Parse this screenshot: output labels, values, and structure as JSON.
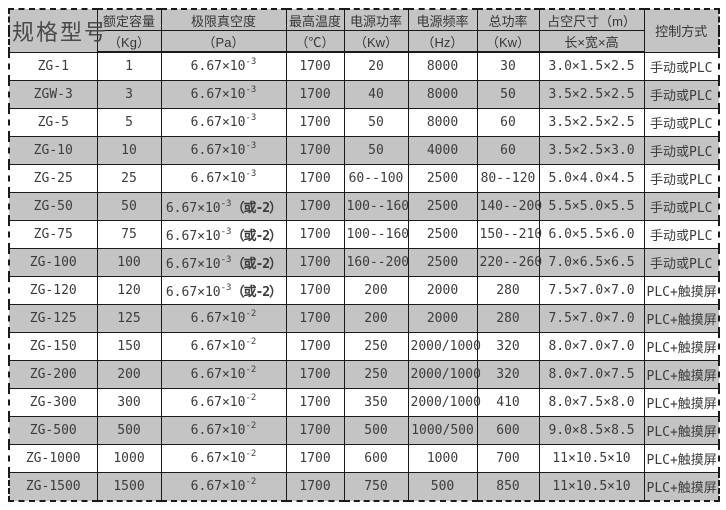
{
  "table": {
    "header": {
      "model": "规格型号",
      "control": "控制方式",
      "cols": [
        {
          "label": "额定容量",
          "unit": "（Kg）"
        },
        {
          "label": "极限真空度",
          "unit": "（Pa）"
        },
        {
          "label": "最高温度",
          "unit": "（℃）"
        },
        {
          "label": "电源功率",
          "unit": "（Kw）"
        },
        {
          "label": "电源频率",
          "unit": "（Hz）"
        },
        {
          "label": "总功率",
          "unit": "（Kw）"
        },
        {
          "label": "占空尺寸（m）",
          "unit": "长×宽×高"
        }
      ]
    },
    "rows": [
      {
        "model": "ZG-1",
        "capacity": "1",
        "vacuum": {
          "base": "6.67×10",
          "exp": "-3",
          "note": ""
        },
        "temp": "1700",
        "power": "20",
        "freq": "8000",
        "total_power": "30",
        "size": "3.0×1.5×2.5",
        "control": "手动或PLC"
      },
      {
        "model": "ZGW-3",
        "capacity": "3",
        "vacuum": {
          "base": "6.67×10",
          "exp": "-3",
          "note": ""
        },
        "temp": "1700",
        "power": "40",
        "freq": "8000",
        "total_power": "50",
        "size": "3.5×2.5×2.5",
        "control": "手动或PLC"
      },
      {
        "model": "ZG-5",
        "capacity": "5",
        "vacuum": {
          "base": "6.67×10",
          "exp": "-3",
          "note": ""
        },
        "temp": "1700",
        "power": "50",
        "freq": "8000",
        "total_power": "60",
        "size": "3.5×2.5×2.5",
        "control": "手动或PLC"
      },
      {
        "model": "ZG-10",
        "capacity": "10",
        "vacuum": {
          "base": "6.67×10",
          "exp": "-3",
          "note": ""
        },
        "temp": "1700",
        "power": "50",
        "freq": "4000",
        "total_power": "60",
        "size": "3.5×2.5×3.0",
        "control": "手动或PLC"
      },
      {
        "model": "ZG-25",
        "capacity": "25",
        "vacuum": {
          "base": "6.67×10",
          "exp": "-3",
          "note": ""
        },
        "temp": "1700",
        "power": "60--100",
        "freq": "2500",
        "total_power": "80--120",
        "size": "5.0×4.0×4.5",
        "control": "手动或PLC"
      },
      {
        "model": "ZG-50",
        "capacity": "50",
        "vacuum": {
          "base": "6.67×10",
          "exp": "-3",
          "note": "（或-2）"
        },
        "temp": "1700",
        "power": "100--160",
        "freq": "2500",
        "total_power": "140--200",
        "size": "5.5×5.0×5.5",
        "control": "手动或PLC"
      },
      {
        "model": "ZG-75",
        "capacity": "75",
        "vacuum": {
          "base": "6.67×10",
          "exp": "-3",
          "note": "（或-2）"
        },
        "temp": "1700",
        "power": "100--160",
        "freq": "2500",
        "total_power": "150--210",
        "size": "6.0×5.5×6.0",
        "control": "手动或PLC"
      },
      {
        "model": "ZG-100",
        "capacity": "100",
        "vacuum": {
          "base": "6.67×10",
          "exp": "-3",
          "note": "（或-2）"
        },
        "temp": "1700",
        "power": "160--200",
        "freq": "2500",
        "total_power": "220--260",
        "size": "7.0×6.5×6.5",
        "control": "手动或PLC"
      },
      {
        "model": "ZG-120",
        "capacity": "120",
        "vacuum": {
          "base": "6.67×10",
          "exp": "-3",
          "note": "（或-2）"
        },
        "temp": "1700",
        "power": "200",
        "freq": "2000",
        "total_power": "280",
        "size": "7.5×7.0×7.0",
        "control": "PLC+触摸屏"
      },
      {
        "model": "ZG-125",
        "capacity": "125",
        "vacuum": {
          "base": "6.67×10",
          "exp": "-2",
          "note": ""
        },
        "temp": "1700",
        "power": "200",
        "freq": "2000",
        "total_power": "280",
        "size": "7.5×7.0×7.0",
        "control": "PLC+触摸屏"
      },
      {
        "model": "ZG-150",
        "capacity": "150",
        "vacuum": {
          "base": "6.67×10",
          "exp": "-2",
          "note": ""
        },
        "temp": "1700",
        "power": "250",
        "freq": "2000/1000",
        "total_power": "320",
        "size": "8.0×7.0×7.0",
        "control": "PLC+触摸屏"
      },
      {
        "model": "ZG-200",
        "capacity": "200",
        "vacuum": {
          "base": "6.67×10",
          "exp": "-2",
          "note": ""
        },
        "temp": "1700",
        "power": "250",
        "freq": "2000/1000",
        "total_power": "320",
        "size": "8.0×7.0×7.5",
        "control": "PLC+触摸屏"
      },
      {
        "model": "ZG-300",
        "capacity": "300",
        "vacuum": {
          "base": "6.67×10",
          "exp": "-2",
          "note": ""
        },
        "temp": "1700",
        "power": "350",
        "freq": "2000/1000",
        "total_power": "410",
        "size": "8.0×7.5×8.0",
        "control": "PLC+触摸屏"
      },
      {
        "model": "ZG-500",
        "capacity": "500",
        "vacuum": {
          "base": "6.67×10",
          "exp": "-2",
          "note": ""
        },
        "temp": "1700",
        "power": "500",
        "freq": "1000/500",
        "total_power": "600",
        "size": "9.0×8.5×8.5",
        "control": "PLC+触摸屏"
      },
      {
        "model": "ZG-1000",
        "capacity": "1000",
        "vacuum": {
          "base": "6.67×10",
          "exp": "-2",
          "note": ""
        },
        "temp": "1700",
        "power": "600",
        "freq": "1000",
        "total_power": "700",
        "size": "11×10.5×10",
        "control": "PLC+触摸屏"
      },
      {
        "model": "ZG-1500",
        "capacity": "1500",
        "vacuum": {
          "base": "6.67×10",
          "exp": "-2",
          "note": ""
        },
        "temp": "1700",
        "power": "750",
        "freq": "500",
        "total_power": "850",
        "size": "11×10.5×10",
        "control": "PLC+触摸屏"
      }
    ]
  }
}
